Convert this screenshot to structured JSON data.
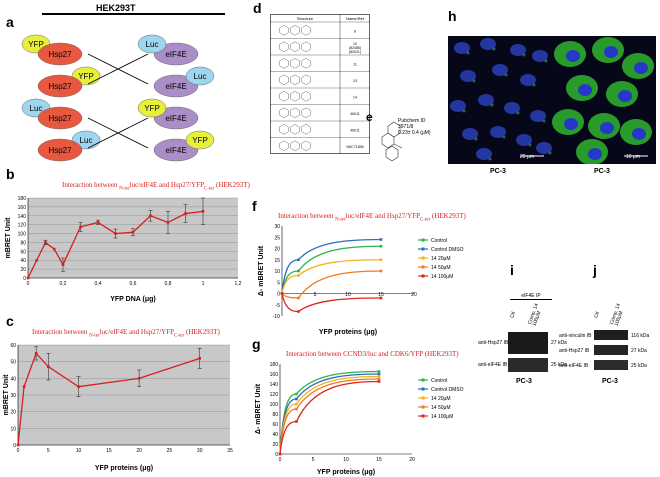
{
  "panel_a": {
    "label": "a",
    "cell_line": "HEK293T",
    "pairs": [
      {
        "left": [
          "YFP",
          "Hsp27"
        ],
        "right": [
          "Luc",
          "eIF4E"
        ]
      },
      {
        "left": [
          "Hsp27",
          "YFP"
        ],
        "right": [
          "eIF4E",
          "Luc"
        ]
      },
      {
        "left": [
          "Luc",
          "Hsp27"
        ],
        "right": [
          "YFP",
          "eIF4E"
        ]
      },
      {
        "left": [
          "Hsp27",
          "Luc"
        ],
        "right": [
          "eIF4E",
          "YFP"
        ]
      }
    ]
  },
  "panel_b": {
    "label": "b",
    "title": "Interaction between",
    "title_mid": "luc/eIF4E  and  Hsp27/YFP",
    "title_sub_n": "N-ter",
    "title_sub_c": "C-ter",
    "title_end": "(HEK293T)"
  },
  "panel_c": {
    "label": "c",
    "title": "Interaction between",
    "title_mid": "luc/eIF4E and  Hsp27/YFP",
    "title_sub_n": "N-ter",
    "title_sub_c": "C-ter",
    "title_end": "(HEK293T)"
  },
  "panel_d": {
    "label": "d",
    "col1": "Structure",
    "col2": "Name/Ref",
    "rows": [
      "8",
      "10\n(82486)\n(82021)",
      "11",
      "13",
      "14",
      "46011",
      "46011",
      "NSC71836"
    ]
  },
  "panel_e": {
    "label": "e",
    "text1": "Pubchem ID",
    "text2": "3971/8",
    "text3": "0.23± 0.4 (μM)"
  },
  "panel_f": {
    "label": "f",
    "title": "Interaction between",
    "title_mid": "luc/eIF4E  and  Hsp27/YFP",
    "title_sub_n": "N-ter",
    "title_sub_c": "C-ter",
    "title_end": "(HEK293T)"
  },
  "panel_g": {
    "label": "g",
    "title": "Interaction between CCND3/luc and CDK6/YFP (HEK293T)"
  },
  "panel_h": {
    "label": "h",
    "left_scale": "20 μm",
    "right_scale": "10 μm",
    "left_caption": "PC-3",
    "right_caption": "PC-3"
  },
  "panel_i": {
    "label": "i",
    "ip_label": "eIF4E IP",
    "col1": "Ctl",
    "col2": "Comp. 14",
    "col2b": "100μM",
    "band1": "anti-Hsp27 IB",
    "band2": "anti-eIF4E IB",
    "kda1": "27 kDa",
    "kda2": "25 kDa",
    "caption": "PC-3"
  },
  "panel_j": {
    "label": "j",
    "col1": "Ctl",
    "col2": "Comp. 14",
    "col2b": "100μM",
    "band1": "anti-vinculin IB",
    "band2": "anti-Hsp27 IB",
    "band3": "anti-eIF4E IB",
    "kda1": "116 kDa",
    "kda2": "27 kDa",
    "kda3": "25 kDa",
    "caption": "PC-3"
  },
  "chart_data": [
    {
      "id": "b",
      "type": "line",
      "xlabel": "YFP DNA (μg)",
      "ylabel": "mBRET Unit",
      "xlim": [
        0,
        1.2
      ],
      "ylim": [
        0,
        180
      ],
      "xticks": [
        "0",
        "0,2",
        "0,4",
        "0,6",
        "0,8",
        "1",
        "1,2"
      ],
      "yticks": [
        "0",
        "20",
        "40",
        "60",
        "80",
        "100",
        "120",
        "140",
        "160",
        "180"
      ],
      "x": [
        0,
        0.05,
        0.1,
        0.15,
        0.2,
        0.3,
        0.4,
        0.5,
        0.6,
        0.7,
        0.8,
        0.9,
        1.0
      ],
      "values": [
        0,
        40,
        80,
        65,
        30,
        115,
        125,
        100,
        103,
        140,
        125,
        145,
        150
      ],
      "errors": [
        0,
        0,
        5,
        0,
        15,
        10,
        5,
        10,
        8,
        12,
        25,
        20,
        30
      ],
      "color": "#d81e1e",
      "grid": true
    },
    {
      "id": "c",
      "type": "line",
      "xlabel": "YFP proteins (μg)",
      "ylabel": "mBRET Unit",
      "xlim": [
        0,
        35
      ],
      "ylim": [
        0,
        60
      ],
      "xticks": [
        "0",
        "5",
        "10",
        "15",
        "20",
        "25",
        "30",
        "35"
      ],
      "yticks": [
        "0",
        "10",
        "20",
        "30",
        "40",
        "50",
        "60"
      ],
      "x": [
        0,
        1,
        3,
        5,
        10,
        20,
        30
      ],
      "values": [
        0,
        35,
        55,
        47,
        35,
        40,
        52
      ],
      "errors": [
        0,
        0,
        4,
        8,
        6,
        5,
        6
      ],
      "color": "#d81e1e",
      "grid": true
    },
    {
      "id": "f",
      "type": "line",
      "xlabel": "YFP proteins (μg)",
      "ylabel": "Δ- mBRET Unit",
      "xlim": [
        0,
        20
      ],
      "ylim": [
        -10,
        30
      ],
      "xticks": [
        "5",
        "10",
        "15",
        "20"
      ],
      "yticks": [
        "-10",
        "-5",
        "0",
        "5",
        "10",
        "15",
        "20",
        "25",
        "30"
      ],
      "x": [
        0,
        2.5,
        15
      ],
      "series": [
        {
          "name": "Control",
          "color": "#2db34a",
          "values": [
            0,
            10,
            21
          ]
        },
        {
          "name": "Control DMSO",
          "color": "#2a6fbf",
          "values": [
            0,
            15,
            24
          ]
        },
        {
          "name": "14 20μM",
          "color": "#f5b21b",
          "values": [
            0,
            8,
            15
          ]
        },
        {
          "name": "14 50μM",
          "color": "#f07a22",
          "values": [
            0,
            -2,
            10
          ]
        },
        {
          "name": "14 100μM",
          "color": "#e0261c",
          "values": [
            0,
            -8,
            -2
          ]
        }
      ]
    },
    {
      "id": "g",
      "type": "line",
      "xlabel": "YFP proteins (μg)",
      "ylabel": "Δ- mBRET Unit",
      "xlim": [
        0,
        20
      ],
      "ylim": [
        0,
        180
      ],
      "xticks": [
        "0",
        "5",
        "10",
        "15",
        "20"
      ],
      "yticks": [
        "0",
        "20",
        "40",
        "60",
        "80",
        "100",
        "120",
        "140",
        "160",
        "180"
      ],
      "x": [
        0,
        2.5,
        15
      ],
      "series": [
        {
          "name": "Control",
          "color": "#2db34a",
          "values": [
            0,
            120,
            165
          ]
        },
        {
          "name": "Control DMSO",
          "color": "#2a6fbf",
          "values": [
            0,
            110,
            160
          ]
        },
        {
          "name": "14 20μM",
          "color": "#f5b21b",
          "values": [
            0,
            100,
            155
          ]
        },
        {
          "name": "14 50μM",
          "color": "#f07a22",
          "values": [
            0,
            90,
            150
          ]
        },
        {
          "name": "14 100μM",
          "color": "#e0261c",
          "values": [
            0,
            65,
            145
          ]
        }
      ]
    }
  ]
}
